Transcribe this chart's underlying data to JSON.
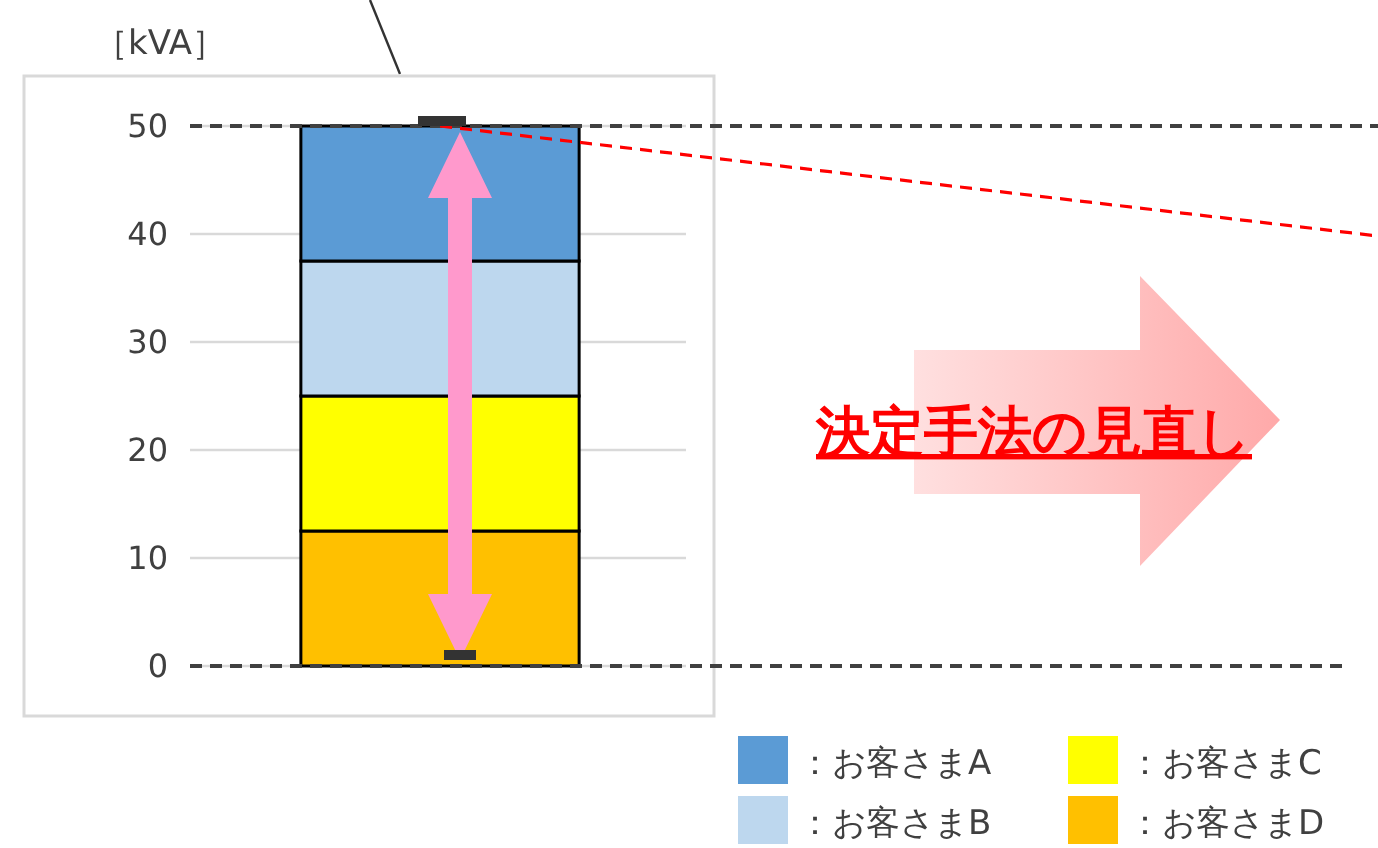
{
  "chart_data": {
    "type": "bar",
    "stacked": true,
    "ylabel": "［kVA］",
    "categories": [
      null
    ],
    "series": [
      {
        "name": "：お客さまD",
        "color": "#ffc000",
        "values": [
          12.5
        ]
      },
      {
        "name": "：お客さまC",
        "color": "#ffff00",
        "values": [
          12.5
        ]
      },
      {
        "name": "：お客さまB",
        "color": "#bdd7ee",
        "values": [
          12.5
        ]
      },
      {
        "name": "：お客さまA",
        "color": "#5b9bd5",
        "values": [
          12.5
        ]
      }
    ],
    "ylim": [
      0,
      50
    ],
    "yticks": [
      0,
      10,
      20,
      30,
      40,
      50
    ],
    "grid": "y",
    "legend": "bottom right",
    "ref_lines": [
      {
        "axis": "y",
        "value": 50,
        "color": "#404040",
        "line_style": "dashed"
      },
      {
        "axis": "y",
        "value": 0,
        "color": "#404040",
        "line_style": "dashed"
      }
    ],
    "annotations": [
      "決定手法の見直し"
    ]
  }
}
